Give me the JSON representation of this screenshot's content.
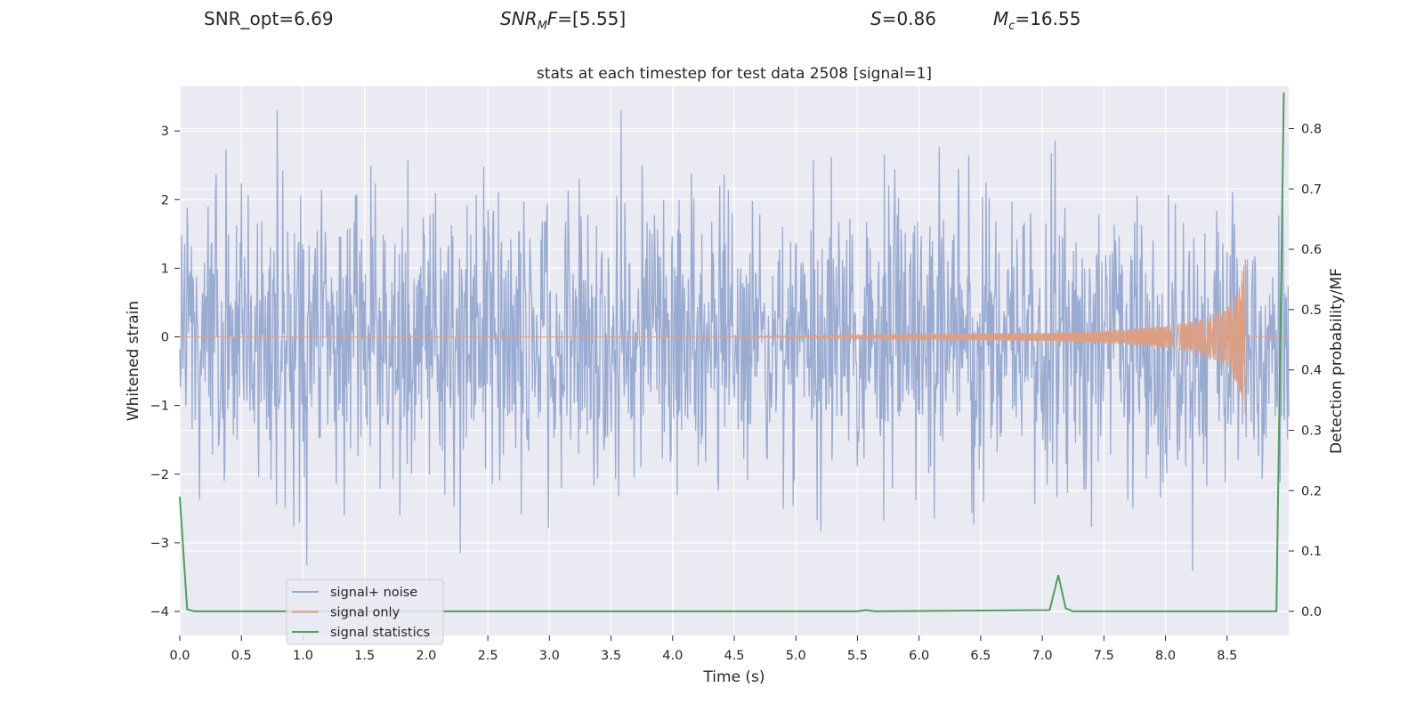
{
  "header": {
    "snr_opt": "SNR_opt=6.69",
    "snr_mf_sym": "SNR",
    "snr_mf_sub": "M",
    "snr_mf_sym2": "F",
    "snr_mf_val": "=[5.55]",
    "s_sym": "S",
    "s_val": "=0.86",
    "mc_sym": "M",
    "mc_sub": "c",
    "mc_val": "=16.55"
  },
  "chart_data": {
    "type": "line",
    "title": "stats at each timestep for test data 2508 [signal=1]",
    "xlabel": "Time (s)",
    "ylabel": "Whitened strain",
    "y2label": "Detection probability/MF",
    "xlim": [
      0,
      9.0
    ],
    "ylim": [
      -4.35,
      3.65
    ],
    "y2lim": [
      -0.04,
      0.87
    ],
    "xticks": [
      "0.0",
      "0.5",
      "1.0",
      "1.5",
      "2.0",
      "2.5",
      "3.0",
      "3.5",
      "4.0",
      "4.5",
      "5.0",
      "5.5",
      "6.0",
      "6.5",
      "7.0",
      "7.5",
      "8.0",
      "8.5"
    ],
    "yticks": [
      "3",
      "2",
      "1",
      "0",
      "−1",
      "−2",
      "−3",
      "−4"
    ],
    "y2ticks": [
      "0.8",
      "0.7",
      "0.6",
      "0.5",
      "0.4",
      "0.3",
      "0.2",
      "0.1",
      "0.0"
    ],
    "grid": true,
    "legend_position": "lower-left",
    "series": [
      {
        "name": "signal+ noise",
        "color": "#95a8cf",
        "description": "whitened noisy strain, amplitude roughly within -4 to 3.3"
      },
      {
        "name": "signal only",
        "color": "#dd9f84",
        "description": "chirp signal growing to about ±1.2 near 8.65 s then ending",
        "envelope": {
          "x": [
            0.0,
            4.0,
            6.0,
            7.0,
            7.5,
            8.0,
            8.3,
            8.5,
            8.6,
            8.65
          ],
          "amp": [
            0.0,
            0.0,
            0.04,
            0.06,
            0.09,
            0.16,
            0.26,
            0.42,
            0.75,
            1.2
          ]
        }
      },
      {
        "name": "signal statistics",
        "color": "#4f9e5c",
        "axis": "right",
        "x": [
          0.0,
          0.06,
          0.12,
          0.2,
          5.5,
          5.57,
          5.64,
          7.06,
          7.13,
          7.19,
          7.25,
          8.9,
          8.96
        ],
        "y": [
          0.19,
          0.003,
          0.0,
          0.0,
          0.0,
          0.002,
          0.0,
          0.002,
          0.06,
          0.005,
          0.0,
          0.0,
          0.86
        ]
      }
    ]
  }
}
